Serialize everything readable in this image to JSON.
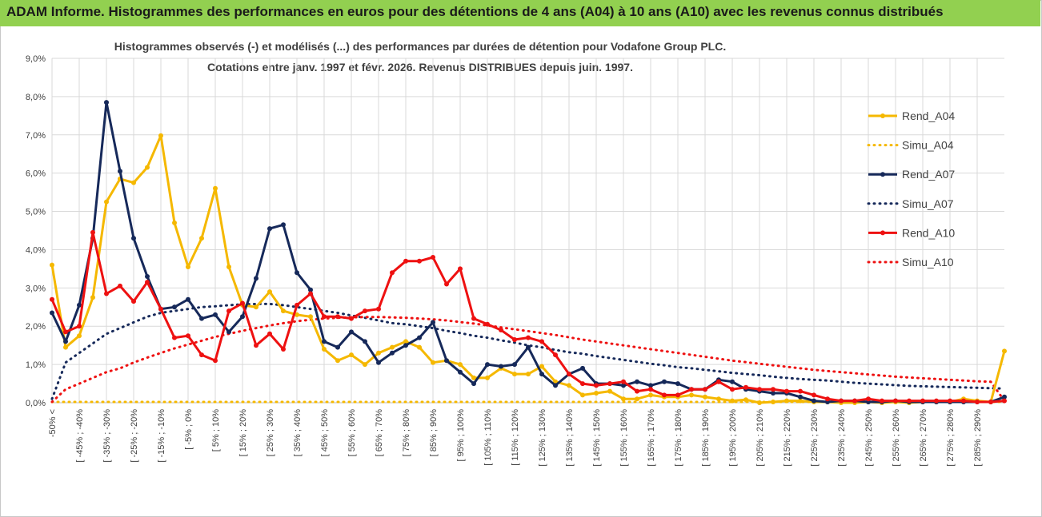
{
  "header": {
    "title": "ADAM Informe. Histogrammes des performances en euros pour des détentions de 4 ans (A04) à 10 ans (A10) avec les revenus connus distribués"
  },
  "colors": {
    "banner": "#92d050",
    "A04": "#f5b800",
    "A07": "#16295a",
    "A10": "#ee1111",
    "grid": "#d9d9d9",
    "text": "#404040"
  },
  "chart_data": {
    "type": "line",
    "title_line1": "Histogrammes observés (-) et modélisés (...) des performances par durées de détention pour Vodafone Group PLC.",
    "title_line2": "Cotations entre janv. 1997 et févr. 2026. Revenus DISTRIBUES depuis juin. 1997.",
    "ylim": [
      0,
      9
    ],
    "yticks": [
      "0,0%",
      "1,0%",
      "2,0%",
      "3,0%",
      "4,0%",
      "5,0%",
      "6,0%",
      "7,0%",
      "8,0%",
      "9,0%"
    ],
    "xlabels": [
      "-50% <",
      "[ -45% ; -40%",
      "[ -35% ; -30%",
      "[ -25% ; -20%",
      "[ -15% ; -10%",
      "[ -5% ; 0%",
      "[ 5% ; 10%",
      "[ 15% ; 20%",
      "[ 25% ; 30%",
      "[ 35% ; 40%",
      "[ 45% ; 50%",
      "[ 55% ; 60%",
      "[ 65% ; 70%",
      "[ 75% ; 80%",
      "[ 85% ; 90%",
      "[ 95% ; 100%",
      "[ 105% ; 110%",
      "[ 115% ; 120%",
      "[ 125% ; 130%",
      "[ 135% ; 140%",
      "[ 145% ; 150%",
      "[ 155% ; 160%",
      "[ 165% ; 170%",
      "[ 175% ; 180%",
      "[ 185% ; 190%",
      "[ 195% ; 200%",
      "[ 205% ; 210%",
      "[ 215% ; 220%",
      "[ 225% ; 230%",
      "[ 235% ; 240%",
      "[ 245% ; 250%",
      "[ 255% ; 260%",
      "[ 265% ; 270%",
      "[ 275% ; 280%",
      "[ 285% ; 290%"
    ],
    "legend": [
      "Rend_A04",
      "Simu_A04",
      "Rend_A07",
      "Simu_A07",
      "Rend_A10",
      "Simu_A10"
    ],
    "series": [
      {
        "name": "Rend_A04",
        "style": "solid",
        "color": "#f5b800",
        "values": [
          3.6,
          1.45,
          1.75,
          2.75,
          5.25,
          5.85,
          5.75,
          6.15,
          6.98,
          4.7,
          3.55,
          4.3,
          5.6,
          3.55,
          2.55,
          2.5,
          2.9,
          2.4,
          2.3,
          2.25,
          1.4,
          1.1,
          1.25,
          1.0,
          1.3,
          1.45,
          1.6,
          1.45,
          1.05,
          1.1,
          1.0,
          0.65,
          0.65,
          0.9,
          0.75,
          0.75,
          0.95,
          0.55,
          0.45,
          0.2,
          0.25,
          0.3,
          0.1,
          0.1,
          0.2,
          0.15,
          0.15,
          0.2,
          0.15,
          0.1,
          0.05,
          0.08,
          0.0,
          0.02,
          0.05,
          0.05,
          0.02,
          0.02,
          0.0,
          0.0,
          0.02,
          0.0,
          0.02,
          0.0,
          0.02,
          0.02,
          0.02,
          0.1,
          0.05,
          0.02,
          1.35
        ]
      },
      {
        "name": "Simu_A04",
        "style": "dotted",
        "color": "#f5b800",
        "values": [
          0.02,
          0.02,
          0.02,
          0.02,
          0.02,
          0.02,
          0.02,
          0.02,
          0.02,
          0.02,
          0.02,
          0.02,
          0.02,
          0.02,
          0.02,
          0.02,
          0.02,
          0.02,
          0.02,
          0.02,
          0.02,
          0.02,
          0.02,
          0.02,
          0.02,
          0.02,
          0.02,
          0.02,
          0.02,
          0.02,
          0.02,
          0.02,
          0.02,
          0.02,
          0.02,
          0.02,
          0.02,
          0.02,
          0.02,
          0.02,
          0.02,
          0.02,
          0.02,
          0.02,
          0.02,
          0.02,
          0.02,
          0.02,
          0.02,
          0.02,
          0.02,
          0.02,
          0.02,
          0.02,
          0.02,
          0.02,
          0.02,
          0.02,
          0.02,
          0.02,
          0.02,
          0.02,
          0.02,
          0.02,
          0.02,
          0.02,
          0.02,
          0.02,
          0.02,
          0.02,
          0.02
        ]
      },
      {
        "name": "Rend_A07",
        "style": "solid",
        "color": "#16295a",
        "values": [
          2.35,
          1.6,
          2.55,
          4.3,
          7.85,
          6.05,
          4.3,
          3.3,
          2.45,
          2.5,
          2.7,
          2.2,
          2.3,
          1.85,
          2.25,
          3.25,
          4.55,
          4.65,
          3.4,
          2.95,
          1.6,
          1.45,
          1.85,
          1.6,
          1.05,
          1.3,
          1.5,
          1.7,
          2.1,
          1.1,
          0.8,
          0.5,
          1.0,
          0.95,
          1.0,
          1.45,
          0.75,
          0.45,
          0.75,
          0.9,
          0.5,
          0.5,
          0.45,
          0.55,
          0.45,
          0.55,
          0.5,
          0.35,
          0.35,
          0.6,
          0.55,
          0.35,
          0.3,
          0.25,
          0.25,
          0.15,
          0.05,
          0.02,
          0.05,
          0.05,
          0.02,
          0.02,
          0.05,
          0.02,
          0.02,
          0.02,
          0.02,
          0.02,
          0.02,
          0.02,
          0.15
        ]
      },
      {
        "name": "Simu_A07",
        "style": "dotted",
        "color": "#16295a",
        "values": [
          0.1,
          1.05,
          1.3,
          1.55,
          1.8,
          1.95,
          2.1,
          2.25,
          2.35,
          2.4,
          2.45,
          2.5,
          2.52,
          2.55,
          2.57,
          2.58,
          2.58,
          2.55,
          2.5,
          2.45,
          2.4,
          2.35,
          2.28,
          2.22,
          2.15,
          2.08,
          2.05,
          2.0,
          1.95,
          1.88,
          1.82,
          1.75,
          1.7,
          1.63,
          1.57,
          1.5,
          1.45,
          1.38,
          1.32,
          1.28,
          1.22,
          1.17,
          1.12,
          1.07,
          1.02,
          0.98,
          0.93,
          0.9,
          0.86,
          0.82,
          0.78,
          0.75,
          0.72,
          0.68,
          0.65,
          0.62,
          0.6,
          0.58,
          0.55,
          0.52,
          0.5,
          0.48,
          0.46,
          0.44,
          0.43,
          0.42,
          0.41,
          0.4,
          0.39,
          0.38,
          0.37
        ]
      },
      {
        "name": "Rend_A10",
        "style": "solid",
        "color": "#ee1111",
        "values": [
          2.7,
          1.85,
          2.0,
          4.45,
          2.85,
          3.05,
          2.65,
          3.15,
          2.45,
          1.7,
          1.75,
          1.25,
          1.1,
          2.4,
          2.6,
          1.5,
          1.8,
          1.4,
          2.55,
          2.85,
          2.25,
          2.25,
          2.2,
          2.4,
          2.45,
          3.4,
          3.7,
          3.7,
          3.8,
          3.1,
          3.5,
          2.2,
          2.05,
          1.9,
          1.65,
          1.7,
          1.6,
          1.25,
          0.75,
          0.5,
          0.45,
          0.5,
          0.55,
          0.3,
          0.35,
          0.2,
          0.2,
          0.35,
          0.35,
          0.55,
          0.35,
          0.4,
          0.35,
          0.35,
          0.3,
          0.3,
          0.2,
          0.1,
          0.05,
          0.05,
          0.1,
          0.05,
          0.05,
          0.05,
          0.05,
          0.05,
          0.05,
          0.05,
          0.02,
          0.02,
          0.05
        ]
      },
      {
        "name": "Simu_A10",
        "style": "dotted",
        "color": "#ee1111",
        "values": [
          0.02,
          0.35,
          0.5,
          0.65,
          0.8,
          0.9,
          1.05,
          1.18,
          1.3,
          1.42,
          1.52,
          1.62,
          1.72,
          1.8,
          1.88,
          1.95,
          2.02,
          2.08,
          2.13,
          2.17,
          2.2,
          2.22,
          2.23,
          2.24,
          2.24,
          2.23,
          2.22,
          2.2,
          2.18,
          2.15,
          2.11,
          2.07,
          2.02,
          1.97,
          1.92,
          1.87,
          1.82,
          1.77,
          1.71,
          1.65,
          1.6,
          1.55,
          1.5,
          1.45,
          1.4,
          1.35,
          1.3,
          1.25,
          1.2,
          1.15,
          1.1,
          1.06,
          1.02,
          0.98,
          0.94,
          0.9,
          0.86,
          0.83,
          0.8,
          0.77,
          0.74,
          0.71,
          0.68,
          0.66,
          0.64,
          0.62,
          0.6,
          0.58,
          0.56,
          0.55,
          0.05
        ]
      }
    ]
  }
}
